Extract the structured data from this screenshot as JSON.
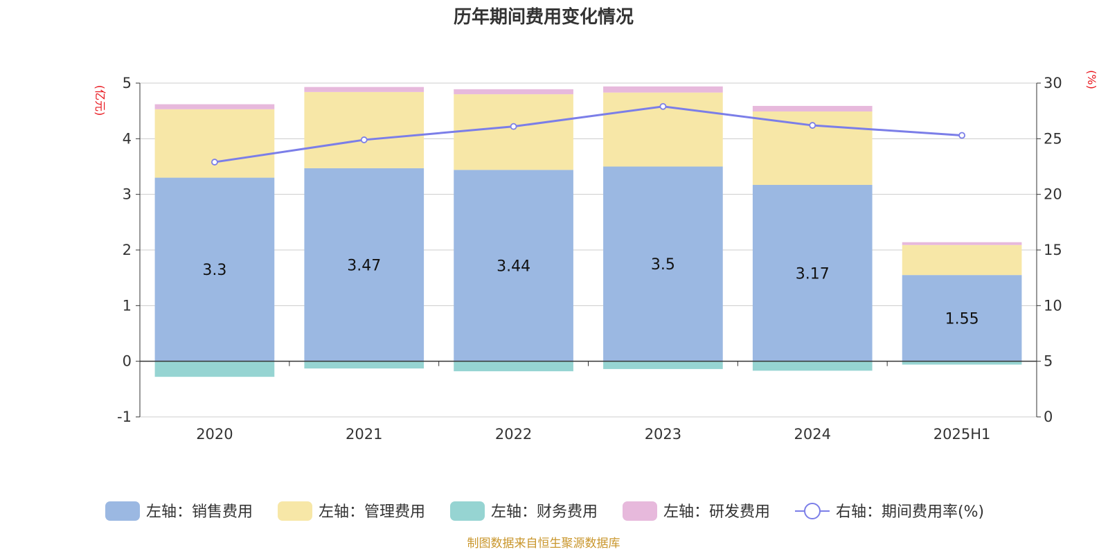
{
  "chart_data": {
    "type": "bar",
    "title": "历年期间费用变化情况",
    "categories": [
      "2020",
      "2021",
      "2022",
      "2023",
      "2024",
      "2025H1"
    ],
    "left_axis": {
      "unit": "(亿元)",
      "ylim": [
        -1,
        5
      ],
      "ticks": [
        "-1",
        "0",
        "1",
        "2",
        "3",
        "4",
        "5"
      ]
    },
    "right_axis": {
      "unit": "(%)",
      "ylim": [
        0,
        30
      ],
      "ticks": [
        "0",
        "5",
        "10",
        "15",
        "20",
        "25",
        "30"
      ]
    },
    "series": [
      {
        "name": "左轴：销售费用",
        "axis": "left",
        "stack": true,
        "color": "#9bb8e2",
        "values": [
          3.3,
          3.47,
          3.44,
          3.5,
          3.17,
          1.55
        ],
        "labels": [
          "3.3",
          "3.47",
          "3.44",
          "3.5",
          "3.17",
          "1.55"
        ]
      },
      {
        "name": "左轴：管理费用",
        "axis": "left",
        "stack": true,
        "color": "#f7e7a7",
        "values": [
          1.23,
          1.37,
          1.36,
          1.33,
          1.32,
          0.54
        ]
      },
      {
        "name": "左轴：财务费用",
        "axis": "left",
        "stack": true,
        "color": "#96d4d2",
        "values": [
          -0.28,
          -0.13,
          -0.18,
          -0.14,
          -0.17,
          -0.06
        ]
      },
      {
        "name": "左轴：研发费用",
        "axis": "left",
        "stack": true,
        "color": "#e7b9dc",
        "values": [
          0.09,
          0.09,
          0.09,
          0.11,
          0.1,
          0.05
        ]
      },
      {
        "name": "右轴：期间费用率(%)",
        "axis": "right",
        "type": "line",
        "color": "#7b7ee8",
        "values": [
          22.9,
          24.9,
          26.1,
          27.9,
          26.2,
          25.3
        ]
      }
    ],
    "grid": true,
    "legend_position": "bottom"
  },
  "footer": "制图数据来自恒生聚源数据库"
}
